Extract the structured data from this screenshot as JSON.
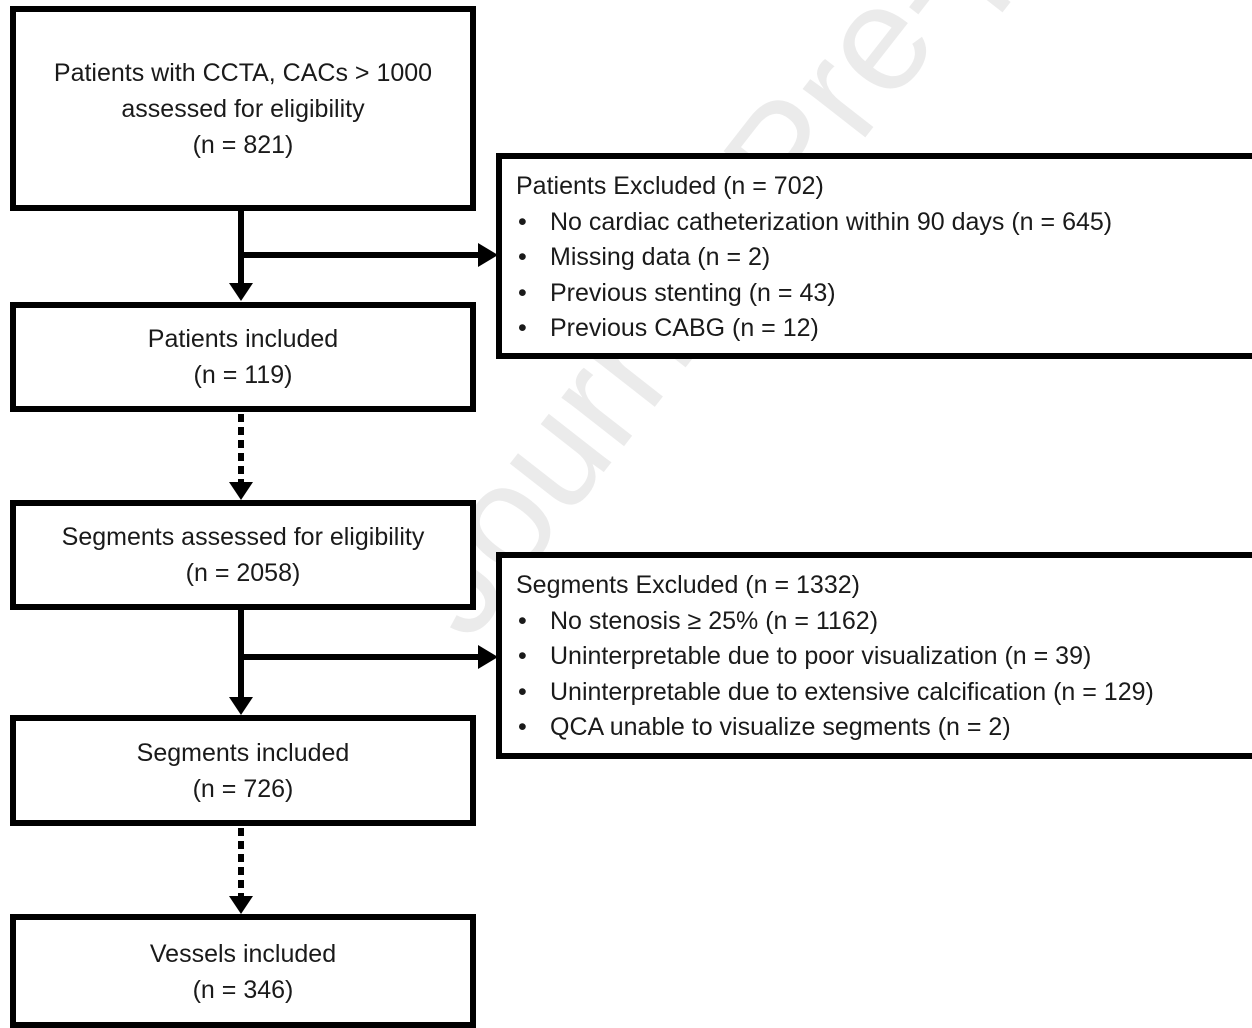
{
  "watermark": "Journal Pre-proof",
  "flow": {
    "assessed": {
      "line1": "Patients with CCTA, CACs > 1000",
      "line2": "assessed for eligibility",
      "line3": "(n = 821)"
    },
    "patients_included": {
      "line1": "Patients included",
      "line2": "(n = 119)"
    },
    "segments_assessed": {
      "line1": "Segments assessed for eligibility",
      "line2": "(n = 2058)"
    },
    "segments_included": {
      "line1": "Segments included",
      "line2": "(n = 726)"
    },
    "vessels_included": {
      "line1": "Vessels included",
      "line2": "(n = 346)"
    }
  },
  "patients_excluded": {
    "title": "Patients Excluded (n = 702)",
    "items": [
      "No cardiac catheterization within 90 days (n = 645)",
      "Missing data (n = 2)",
      "Previous stenting (n = 43)",
      "Previous CABG (n = 12)"
    ]
  },
  "segments_excluded": {
    "title": "Segments Excluded (n = 1332)",
    "items": [
      "No stenosis ≥ 25% (n = 1162)",
      "Uninterpretable due to poor visualization (n = 39)",
      "Uninterpretable due to extensive calcification (n = 129)",
      "QCA unable to visualize segments (n = 2)"
    ]
  }
}
